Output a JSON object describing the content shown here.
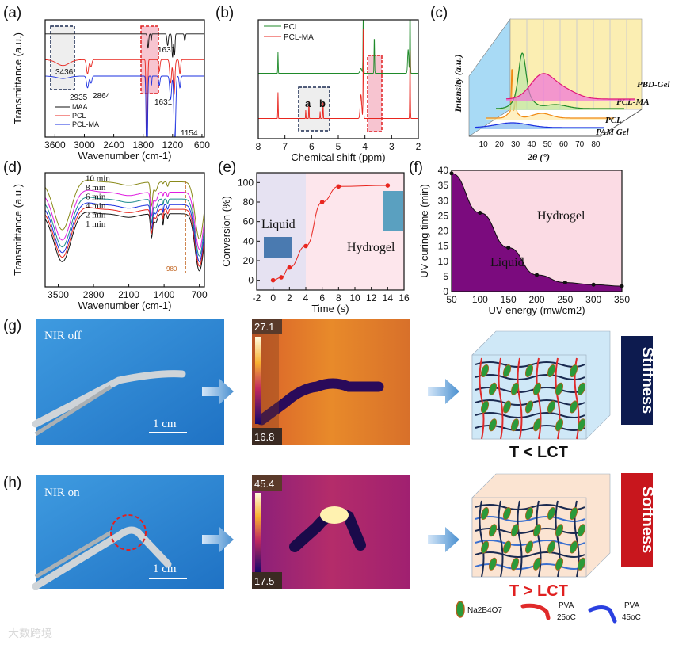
{
  "panel_labels": [
    "(a)",
    "(b)",
    "(c)",
    "(d)",
    "(e)",
    "(f)",
    "(g)",
    "(h)"
  ],
  "colors": {
    "black": "#111111",
    "red": "#e8261f",
    "blue": "#1a2fe0",
    "green": "#1f8a2a",
    "navy": "#0d1b4f",
    "darkred": "#c8161d",
    "purple": "#7b0b7e",
    "pink": "#fbdbe4",
    "lavender": "#e6e2f2"
  },
  "chart_data": [
    {
      "id": "a",
      "type": "line",
      "xlabel": "Wavenumber (cm-1)",
      "ylabel": "Transmittance (a.u.)",
      "xlim": [
        3800,
        550
      ],
      "xticks": [
        "3600",
        "3000",
        "2400",
        "1800",
        "1200",
        "600"
      ],
      "xtick_values": [
        3600,
        3000,
        2400,
        1800,
        1200,
        600
      ],
      "series": [
        {
          "name": "MAA",
          "color": "#111111",
          "offset": 0.88,
          "peaks": [
            [
              1700,
              18,
              0.12
            ],
            [
              1635,
              10,
              0.06
            ],
            [
              1300,
              20,
              0.1
            ],
            [
              1200,
              18,
              0.2
            ],
            [
              1160,
              15,
              0.18
            ],
            [
              950,
              15,
              0.06
            ]
          ]
        },
        {
          "name": "PCL",
          "color": "#e8261f",
          "offset": 0.66,
          "peaks": [
            [
              3436,
              180,
              0.05
            ],
            [
              2935,
              30,
              0.12
            ],
            [
              2864,
              25,
              0.06
            ],
            [
              1724,
              18,
              0.95
            ],
            [
              1470,
              20,
              0.1
            ],
            [
              1240,
              25,
              0.2
            ],
            [
              1170,
              25,
              0.3
            ],
            [
              1050,
              20,
              0.12
            ]
          ]
        },
        {
          "name": "PCL-MA",
          "color": "#1a2fe0",
          "offset": 0.52,
          "peaks": [
            [
              3436,
              180,
              0.02
            ],
            [
              2935,
              30,
              0.1
            ],
            [
              2864,
              25,
              0.06
            ],
            [
              1724,
              18,
              0.95
            ],
            [
              1631,
              10,
              0.08
            ],
            [
              1470,
              20,
              0.08
            ],
            [
              1240,
              25,
              0.2
            ],
            [
              1154,
              25,
              0.6
            ],
            [
              1050,
              20,
              0.1
            ]
          ]
        }
      ],
      "annotations": [
        "3436",
        "2935",
        "2864",
        "1631",
        "1631",
        "1154"
      ]
    },
    {
      "id": "b",
      "type": "line",
      "xlabel": "Chemical shift (ppm)",
      "ylabel": "",
      "xlim": [
        8,
        2
      ],
      "xticks": [
        "8",
        "7",
        "6",
        "5",
        "4",
        "3",
        "2"
      ],
      "xtick_values": [
        8,
        7,
        6,
        5,
        4,
        3,
        2
      ],
      "series": [
        {
          "name": "PCL",
          "color": "#1f8a2a",
          "offset": 0.55,
          "peaks": [
            [
              7.26,
              0.012,
              -0.18
            ],
            [
              4.06,
              0.015,
              -0.75
            ],
            [
              4.15,
              0.05,
              -0.04
            ],
            [
              3.65,
              0.015,
              -0.3
            ],
            [
              2.31,
              0.015,
              -0.75
            ],
            [
              2.38,
              0.03,
              -0.2
            ]
          ]
        },
        {
          "name": "PCL-MA",
          "color": "#e8261f",
          "offset": 0.17,
          "peaks": [
            [
              7.26,
              0.012,
              -0.22
            ],
            [
              6.22,
              0.01,
              -0.07
            ],
            [
              6.1,
              0.012,
              -0.15
            ],
            [
              5.68,
              0.01,
              -0.06
            ],
            [
              5.57,
              0.012,
              -0.14
            ],
            [
              4.06,
              0.015,
              -0.75
            ],
            [
              4.15,
              0.04,
              -0.2
            ],
            [
              2.31,
              0.015,
              -0.6
            ]
          ]
        }
      ],
      "annotations": [
        "a",
        "b"
      ]
    },
    {
      "id": "c",
      "type": "line",
      "xlabel": "2θ (°)",
      "ylabel": "Intensity (a.u.)",
      "xlim": [
        5,
        85
      ],
      "xticks": [
        "10",
        "20",
        "30",
        "40",
        "50",
        "60",
        "70",
        "80"
      ],
      "xtick_values": [
        10,
        20,
        30,
        40,
        50,
        60,
        70,
        80
      ],
      "series": [
        {
          "name": "PAM Gel",
          "color": "#1a2fe0",
          "fill": "#7fb6f0",
          "peaks": [
            [
              28,
              14,
              0.06
            ]
          ]
        },
        {
          "name": "PCL",
          "color": "#f08a12",
          "fill": "#ffe9a8",
          "peaks": [
            [
              21.4,
              0.5,
              0.55
            ],
            [
              23.7,
              0.5,
              0.22
            ],
            [
              22,
              4,
              0.1
            ],
            [
              40,
              8,
              0.06
            ]
          ]
        },
        {
          "name": "PCL-MA",
          "color": "#1f8a2a",
          "fill": "#bfe8a8",
          "peaks": [
            [
              21.4,
              3,
              0.5
            ],
            [
              22,
              7,
              0.2
            ],
            [
              42,
              10,
              0.05
            ]
          ]
        },
        {
          "name": "PBD-Gel",
          "color": "#e0187a",
          "fill": "#f070d8",
          "peaks": [
            [
              27,
              10,
              0.28
            ],
            [
              40,
              12,
              0.12
            ]
          ]
        }
      ]
    },
    {
      "id": "d",
      "type": "line",
      "xlabel": "Wavenumber (cm-1)",
      "ylabel": "Transmittance (a.u.)",
      "xlim": [
        3760,
        600
      ],
      "xticks": [
        "3500",
        "2800",
        "2100",
        "1400",
        "700"
      ],
      "xtick_values": [
        3500,
        2800,
        2100,
        1400,
        700
      ],
      "series": [
        {
          "name": "1 min",
          "color": "#111111",
          "offset": 0.64
        },
        {
          "name": "2 min",
          "color": "#e8261f",
          "offset": 0.68
        },
        {
          "name": "4 min",
          "color": "#1a2fe0",
          "offset": 0.72
        },
        {
          "name": "6 min",
          "color": "#1c8c8c",
          "offset": 0.77
        },
        {
          "name": "8 min",
          "color": "#e01ee0",
          "offset": 0.83
        },
        {
          "name": "10 min",
          "color": "#8a8a1a",
          "offset": 0.92
        }
      ],
      "annotation": "980"
    },
    {
      "id": "e",
      "type": "scatter-line",
      "xlabel": "Time (s)",
      "ylabel": "Conversion (%)",
      "xlim": [
        -2,
        16
      ],
      "ylim": [
        -10,
        110
      ],
      "xticks": [
        "-2",
        "0",
        "2",
        "4",
        "6",
        "8",
        "10",
        "12",
        "14",
        "16"
      ],
      "xtick_values": [
        -2,
        0,
        2,
        4,
        6,
        8,
        10,
        12,
        14,
        16
      ],
      "yticks": [
        "0",
        "20",
        "40",
        "60",
        "80",
        "100"
      ],
      "ytick_values": [
        0,
        20,
        40,
        60,
        80,
        100
      ],
      "x": [
        0,
        1,
        2,
        4,
        6,
        8,
        14
      ],
      "y": [
        0,
        3,
        13,
        35,
        80,
        96,
        97
      ],
      "regions": [
        {
          "label": "Liquid",
          "from": -2,
          "to": 4
        },
        {
          "label": "Hydrogel",
          "from": 4,
          "to": 16
        }
      ]
    },
    {
      "id": "f",
      "type": "area",
      "xlabel": "UV energy (mw/cm2)",
      "ylabel": "UV curing time (min)",
      "xlim": [
        50,
        350
      ],
      "ylim": [
        0,
        40
      ],
      "xticks": [
        "50",
        "100",
        "150",
        "200",
        "250",
        "300",
        "350"
      ],
      "xtick_values": [
        50,
        100,
        150,
        200,
        250,
        300,
        350
      ],
      "yticks": [
        "0",
        "5",
        "10",
        "15",
        "20",
        "25",
        "30",
        "35",
        "40"
      ],
      "ytick_values": [
        0,
        5,
        10,
        15,
        20,
        25,
        30,
        35,
        40
      ],
      "x": [
        50,
        100,
        150,
        200,
        250,
        300,
        350
      ],
      "y": [
        39,
        26,
        14.5,
        5.5,
        3,
        2.3,
        1.8
      ],
      "regions": [
        {
          "label": "Liquid"
        },
        {
          "label": "Hydrogel"
        }
      ]
    }
  ],
  "row_g": {
    "photo_text": "NIR off",
    "scale": "1 cm",
    "temp_max": "27.1",
    "temp_min": "16.8",
    "condition": "T < LCT",
    "property": "Stiffness"
  },
  "row_h": {
    "photo_text": "NIR on",
    "scale": "1 cm",
    "temp_max": "45.4",
    "temp_min": "17.5",
    "condition": "T > LCT",
    "property": "Softness"
  },
  "legend": {
    "borax": "Na2B4O7",
    "pva25_name": "PVA",
    "pva25_temp": "25oC",
    "pva45_name": "PVA",
    "pva45_temp": "45oC"
  },
  "watermark": "大数跨境"
}
